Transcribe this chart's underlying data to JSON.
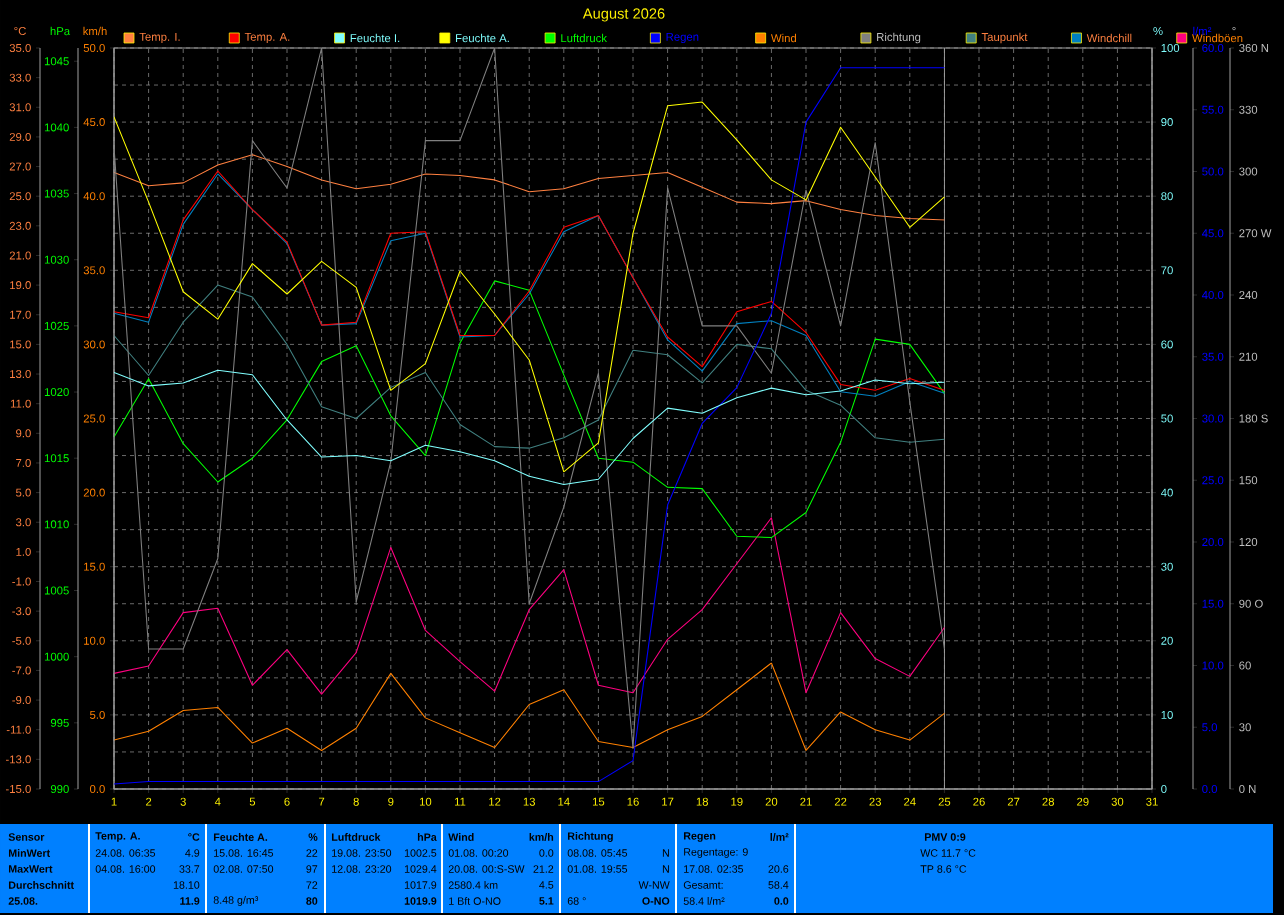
{
  "chart_data": [
    {
      "type": "line",
      "title": "August 2026",
      "ylabel": "°C",
      "y2label": "hPa",
      "y3label": "km/h",
      "x": [
        1,
        2,
        3,
        4,
        5,
        6,
        7,
        8,
        9,
        10,
        11,
        12,
        13,
        14,
        15,
        16,
        17,
        18,
        19,
        20,
        21,
        22,
        23,
        24,
        25
      ],
      "xlim": [
        1,
        31
      ],
      "xticks": [
        1,
        2,
        3,
        4,
        5,
        6,
        7,
        8,
        9,
        10,
        11,
        12,
        13,
        14,
        15,
        16,
        17,
        18,
        19,
        20,
        21,
        22,
        23,
        24,
        25,
        26,
        27,
        28,
        29,
        30,
        31
      ],
      "ylim": [
        -15,
        35
      ],
      "yticks": [
        {
          "value": -15,
          "label": "-15.0"
        },
        {
          "value": -13,
          "label": "-13.0"
        },
        {
          "value": -11,
          "label": "-11.0"
        },
        {
          "value": -9,
          "label": "-9.0"
        },
        {
          "value": -7,
          "label": "-7.0"
        },
        {
          "value": -5,
          "label": "-5.0"
        },
        {
          "value": -3,
          "label": "-3.0"
        },
        {
          "value": -1,
          "label": "-1.0"
        },
        {
          "value": 1,
          "label": "1.0"
        },
        {
          "value": 3,
          "label": "3.0"
        },
        {
          "value": 5,
          "label": "5.0"
        },
        {
          "value": 7,
          "label": "7.0"
        },
        {
          "value": 9,
          "label": "9.0"
        },
        {
          "value": 11,
          "label": "11.0"
        },
        {
          "value": 13,
          "label": "13.0"
        },
        {
          "value": 15,
          "label": "15.0"
        },
        {
          "value": 17,
          "label": "17.0"
        },
        {
          "value": 19,
          "label": "19.0"
        },
        {
          "value": 21,
          "label": "21.0"
        },
        {
          "value": 23,
          "label": "23.0"
        },
        {
          "value": 25,
          "label": "25.0"
        },
        {
          "value": 27,
          "label": "27.0"
        },
        {
          "value": 29,
          "label": "29.0"
        },
        {
          "value": 31,
          "label": "31.0"
        },
        {
          "value": 33,
          "label": "33.0"
        },
        {
          "value": 35,
          "label": "35.0"
        }
      ],
      "y2lim": [
        990,
        1046
      ],
      "y2ticks": [
        990,
        995,
        1000,
        1005,
        1010,
        1015,
        1020,
        1025,
        1030,
        1035,
        1040,
        1045
      ],
      "y3lim": [
        0,
        50
      ],
      "y3ticks": [
        {
          "value": 0,
          "label": "0.0"
        },
        {
          "value": 5,
          "label": "5.0"
        },
        {
          "value": 10,
          "label": "10.0"
        },
        {
          "value": 15,
          "label": "15.0"
        },
        {
          "value": 20,
          "label": "20.0"
        },
        {
          "value": 25,
          "label": "25.0"
        },
        {
          "value": 30,
          "label": "30.0"
        },
        {
          "value": 35,
          "label": "35.0"
        },
        {
          "value": 40,
          "label": "40.0"
        },
        {
          "value": 45,
          "label": "45.0"
        },
        {
          "value": 50,
          "label": "50.0"
        }
      ],
      "grid": true,
      "legend": "top",
      "marker": "none",
      "line_style": "solid",
      "ref_lines": [
        {
          "axis": "x",
          "value": 25,
          "color": "#a0a0a0"
        }
      ],
      "series": [
        {
          "name": "Temp. I.",
          "color": "#ff8040",
          "values": [
            26.6,
            25.7,
            25.9,
            27.1,
            27.8,
            27.0,
            26.1,
            25.5,
            25.8,
            26.5,
            26.4,
            26.1,
            25.3,
            25.5,
            26.2,
            26.4,
            26.6,
            25.6,
            24.6,
            24.5,
            24.7,
            24.1,
            23.7,
            23.5,
            23.4
          ]
        },
        {
          "name": "Temp. A.",
          "color": "#ff0000",
          "values": [
            17.2,
            16.8,
            23.4,
            26.7,
            24.1,
            21.9,
            16.3,
            16.5,
            22.5,
            22.6,
            15.6,
            15.6,
            18.6,
            22.9,
            23.7,
            19.5,
            15.5,
            13.5,
            17.2,
            17.9,
            15.8,
            12.3,
            11.9,
            12.7,
            11.9
          ]
        },
        {
          "name": "Luftdruck",
          "color": "#00ff00",
          "axis": "y2",
          "values": [
            1016.6,
            1021.0,
            1016.1,
            1013.2,
            1015.0,
            1017.9,
            1022.3,
            1023.5,
            1018.2,
            1015.2,
            1023.7,
            1028.4,
            1027.7,
            1021.3,
            1015.0,
            1014.7,
            1012.8,
            1012.7,
            1009.1,
            1009.0,
            1010.9,
            1016.2,
            1024.0,
            1023.6,
            1019.9
          ]
        },
        {
          "name": "Wind",
          "color": "#ff8000",
          "axis": "y3",
          "values": [
            3.3,
            3.9,
            5.3,
            5.5,
            3.1,
            4.1,
            2.6,
            4.1,
            7.8,
            4.8,
            3.8,
            2.8,
            5.7,
            6.7,
            3.2,
            2.8,
            4.0,
            4.9,
            6.7,
            8.5,
            2.6,
            5.2,
            4.0,
            3.3,
            5.1
          ]
        },
        {
          "name": "Taupunkt",
          "color": "#408080",
          "values": [
            15.6,
            12.9,
            16.5,
            19.0,
            18.2,
            15.0,
            10.8,
            10.0,
            12.1,
            13.1,
            9.6,
            8.1,
            8.0,
            8.7,
            9.9,
            14.6,
            14.3,
            12.4,
            15.0,
            14.7,
            11.9,
            10.9,
            8.7,
            8.4,
            8.6
          ]
        },
        {
          "name": "Windchill",
          "color": "#0080c0",
          "values": [
            17.1,
            16.5,
            23.1,
            26.5,
            24.1,
            21.8,
            16.3,
            16.4,
            22.0,
            22.5,
            15.5,
            15.6,
            18.4,
            22.6,
            23.7,
            19.5,
            15.3,
            13.2,
            16.4,
            16.6,
            15.6,
            11.8,
            11.5,
            12.5,
            11.7
          ]
        },
        {
          "name": "Windböen",
          "color": "#ff0080",
          "axis": "y3",
          "values": [
            7.8,
            8.3,
            11.9,
            12.2,
            7.0,
            9.4,
            6.4,
            9.2,
            16.3,
            10.7,
            8.6,
            6.6,
            12.1,
            14.8,
            7.0,
            6.5,
            10.1,
            12.1,
            15.2,
            18.3,
            6.5,
            11.9,
            8.8,
            7.6,
            10.9
          ]
        }
      ],
      "annotations": [
        "Sensor",
        "MinWert",
        "MaxWert",
        "Durchschnitt",
        "25.08.",
        "Temp. A.",
        "°C",
        "24.08. 06:35",
        "4.9",
        "04.08. 16:00",
        "33.7",
        "18.10",
        "11.9",
        "Feuchte A.",
        "%",
        "15.08. 16:45",
        "22",
        "02.08. 07:50",
        "97",
        "72",
        "8.48 g/m³",
        "80",
        "Luftdruck",
        "hPa",
        "19.08. 23:50",
        "1002.5",
        "12.08. 23:20",
        "1029.4",
        "1017.9",
        "1019.9",
        "Wind",
        "km/h",
        "01.08. 00:20",
        "0.0",
        "20.08. 00:S-SW",
        "21.2",
        "2580.4 km",
        "4.5",
        "1 Bft O-NO",
        "5.1",
        "Richtung",
        "08.08. 05:45",
        "N",
        "01.08. 19:55",
        "N",
        "W-NW",
        "68 °",
        "O-NO",
        "Regen",
        "l/m²",
        "Regentage: 9",
        "17.08. 02:35",
        "20.6",
        "Gesamt:",
        "58.4",
        "58.4 l/m²",
        "0.0",
        "PMV 0:9",
        "WC 11.7 °C",
        "TP 8.6 °C"
      ]
    },
    {
      "type": "line",
      "ylabel": "%",
      "y2label": "l/m²",
      "y3label": "°",
      "x": [
        1,
        2,
        3,
        4,
        5,
        6,
        7,
        8,
        9,
        10,
        11,
        12,
        13,
        14,
        15,
        16,
        17,
        18,
        19,
        20,
        21,
        22,
        23,
        24,
        25
      ],
      "xlim": [
        1,
        31
      ],
      "tick_labels": "y",
      "legend": "top",
      "marker": "none",
      "line_style": "solid",
      "ylim": [
        0,
        100
      ],
      "yticks": [
        0,
        10,
        20,
        30,
        40,
        50,
        60,
        70,
        80,
        90,
        100
      ],
      "y2lim": [
        0,
        60
      ],
      "y2ticks": [
        {
          "value": 0,
          "label": "0.0"
        },
        {
          "value": 5,
          "label": "5.0"
        },
        {
          "value": 10,
          "label": "10.0"
        },
        {
          "value": 15,
          "label": "15.0"
        },
        {
          "value": 20,
          "label": "20.0"
        },
        {
          "value": 25,
          "label": "25.0"
        },
        {
          "value": 30,
          "label": "30.0"
        },
        {
          "value": 35,
          "label": "35.0"
        },
        {
          "value": 40,
          "label": "40.0"
        },
        {
          "value": 45,
          "label": "45.0"
        },
        {
          "value": 50,
          "label": "50.0"
        },
        {
          "value": 55,
          "label": "55.0"
        },
        {
          "value": 60,
          "label": "60.0"
        }
      ],
      "y3lim": [
        0,
        360
      ],
      "y3ticks": [
        {
          "value": 0,
          "label": "0 N"
        },
        30,
        60,
        {
          "value": 90,
          "label": "90 O"
        },
        120,
        150,
        {
          "value": 180,
          "label": "180 S"
        },
        210,
        240,
        {
          "value": 270,
          "label": "270 W"
        },
        300,
        330,
        {
          "value": 360,
          "label": "360 N"
        }
      ],
      "series": [
        {
          "name": "Feuchte I.",
          "color": "#80ffff",
          "values": [
            56.2,
            54.4,
            54.8,
            56.5,
            55.9,
            49.8,
            44.8,
            45.0,
            44.3,
            46.4,
            45.5,
            44.3,
            42.2,
            41.1,
            41.8,
            47.3,
            51.4,
            50.7,
            52.8,
            54.1,
            53.2,
            53.7,
            55.2,
            54.7,
            54.9
          ]
        },
        {
          "name": "Feuchte A.",
          "color": "#ffff00",
          "values": [
            90.7,
            79.2,
            67.1,
            63.4,
            70.9,
            66.8,
            71.2,
            67.7,
            53.8,
            57.4,
            69.9,
            64.1,
            57.9,
            42.8,
            46.7,
            75.0,
            92.2,
            92.7,
            87.6,
            82.2,
            79.5,
            89.3,
            82.6,
            75.8,
            79.9
          ]
        },
        {
          "name": "Regen",
          "color": "#0000ff",
          "axis": "y2",
          "values": [
            0.4,
            0.6,
            0.6,
            0.6,
            0.6,
            0.6,
            0.6,
            0.6,
            0.6,
            0.6,
            0.6,
            0.6,
            0.6,
            0.6,
            0.6,
            2.3,
            23.0,
            29.6,
            32.5,
            38.5,
            54.0,
            58.4,
            58.4,
            58.4,
            58.4
          ]
        },
        {
          "name": "Richtung",
          "color": "#808080",
          "axis": "y3",
          "values": [
            312,
            68,
            68,
            112,
            315,
            292,
            360,
            91,
            159,
            315,
            315,
            360,
            90,
            137,
            202,
            20,
            292,
            225,
            225,
            202,
            291,
            225,
            314,
            188,
            68
          ]
        }
      ]
    }
  ]
}
